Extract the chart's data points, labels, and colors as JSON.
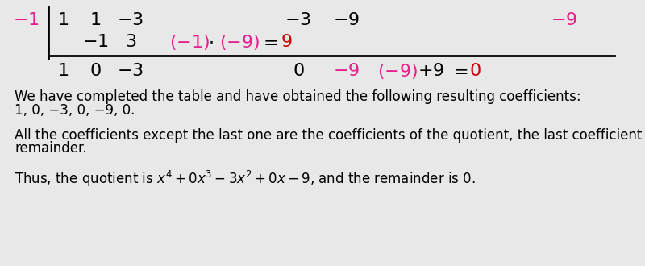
{
  "bg_color": "#e8e8e8",
  "pink": "#e91e8c",
  "red": "#cc0000",
  "black": "#000000",
  "font_size_table": 16,
  "font_size_text": 12,
  "text1": "We have completed the table and have obtained the following resulting coefficients:",
  "text2": "1, 0, −3, 0, −9, 0.",
  "text3": "All the coefficients except the last one are the coefficients of the quotient, the last coefficient is the",
  "text4": "remainder.",
  "text_last": "Thus, the quotient is $x^4 + 0x^3 - 3x^2 + 0x - 9$, and the remainder is $0$."
}
